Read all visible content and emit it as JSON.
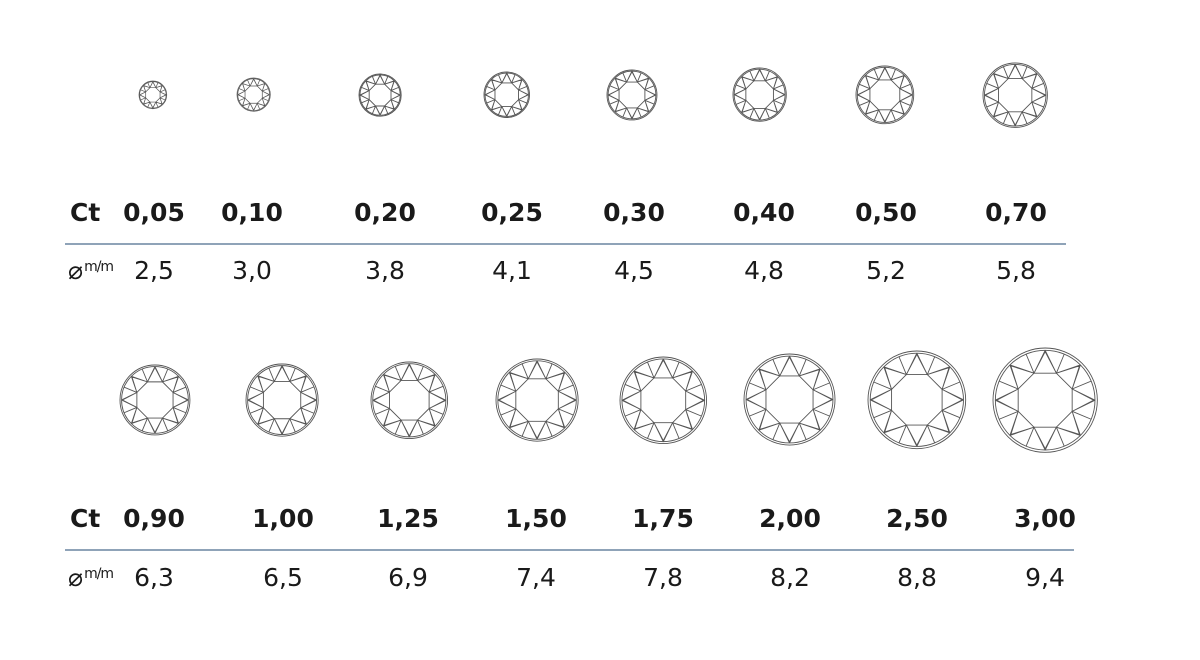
{
  "labels": {
    "carat": "Ct",
    "diameter_symbol": "⌀",
    "diameter_unit": "m/m"
  },
  "colors": {
    "rule": "#8fa3b8",
    "stroke": "#555555",
    "text": "#1a1a1a"
  },
  "rows": [
    {
      "carats": [
        "0,05",
        "0,10",
        "0,20",
        "0,25",
        "0,30",
        "0,40",
        "0,50",
        "0,70"
      ],
      "diameters": [
        "2,5",
        "3,0",
        "3,8",
        "4,1",
        "4,5",
        "4,8",
        "5,2",
        "5,8"
      ],
      "diameter_values_mm": [
        2.5,
        3.0,
        3.8,
        4.1,
        4.5,
        4.8,
        5.2,
        5.8
      ]
    },
    {
      "carats": [
        "0,90",
        "1,00",
        "1,25",
        "1,50",
        "1,75",
        "2,00",
        "2,50",
        "3,00"
      ],
      "diameters": [
        "6,3",
        "6,5",
        "6,9",
        "7,4",
        "7,8",
        "8,2",
        "8,8",
        "9,4"
      ],
      "diameter_values_mm": [
        6.3,
        6.5,
        6.9,
        7.4,
        7.8,
        8.2,
        8.8,
        9.4
      ]
    }
  ]
}
